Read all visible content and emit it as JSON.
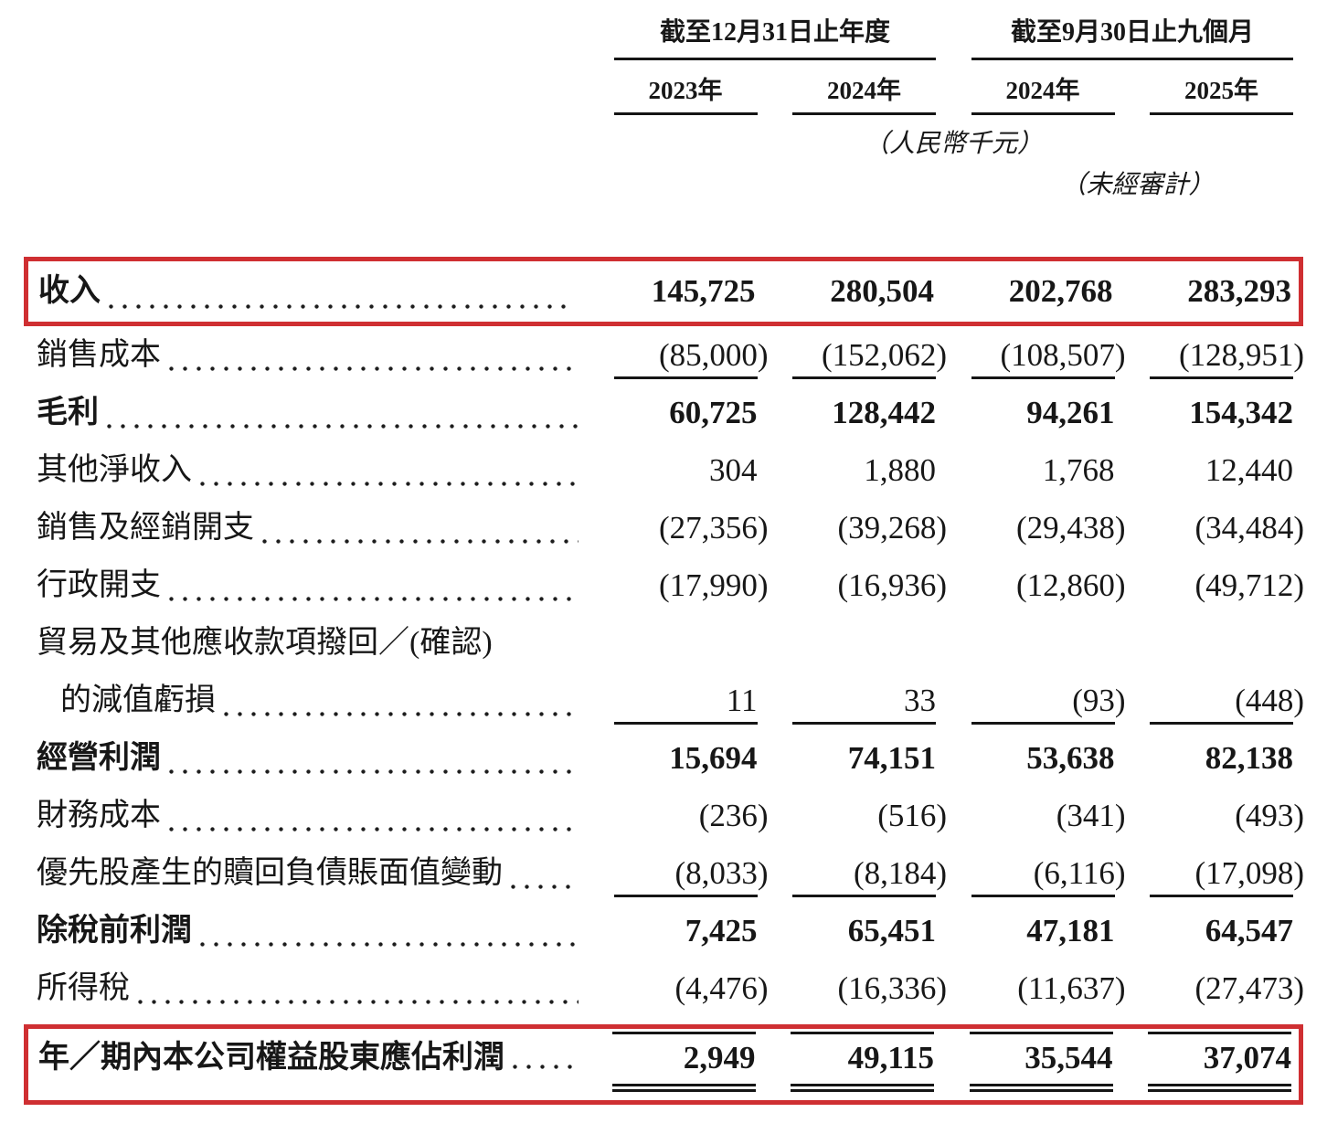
{
  "table": {
    "highlight_border_color": "#cf2f32",
    "rule_color": "#151515",
    "col_groups": [
      {
        "title": "截至12月31日止年度",
        "years": [
          "2023年",
          "2024年"
        ]
      },
      {
        "title": "截至9月30日止九個月",
        "years": [
          "2024年",
          "2025年"
        ]
      }
    ],
    "unit_note": "（人民幣千元）",
    "unaudited_note": "（未經審計）",
    "rows": [
      {
        "label": "收入",
        "values": [
          "145,725",
          "280,504",
          "202,768",
          "283,293"
        ],
        "bold": true,
        "red_box": true
      },
      {
        "label": "銷售成本",
        "values": [
          "(85,000)",
          "(152,062)",
          "(108,507)",
          "(128,951)"
        ],
        "rule_below": true
      },
      {
        "label": "毛利",
        "values": [
          "60,725",
          "128,442",
          "94,261",
          "154,342"
        ],
        "bold": true
      },
      {
        "label": "其他淨收入",
        "values": [
          "304",
          "1,880",
          "1,768",
          "12,440"
        ]
      },
      {
        "label": "銷售及經銷開支",
        "values": [
          "(27,356)",
          "(39,268)",
          "(29,438)",
          "(34,484)"
        ]
      },
      {
        "label": "行政開支",
        "values": [
          "(17,990)",
          "(16,936)",
          "(12,860)",
          "(49,712)"
        ]
      },
      {
        "label": "貿易及其他應收款項撥回／(確認)",
        "label2": "的減值虧損",
        "values": [
          "11",
          "33",
          "(93)",
          "(448)"
        ],
        "rule_below": true
      },
      {
        "label": "經營利潤",
        "values": [
          "15,694",
          "74,151",
          "53,638",
          "82,138"
        ],
        "bold": true
      },
      {
        "label": "財務成本",
        "values": [
          "(236)",
          "(516)",
          "(341)",
          "(493)"
        ]
      },
      {
        "label": "優先股產生的贖回負債賬面值變動",
        "values": [
          "(8,033)",
          "(8,184)",
          "(6,116)",
          "(17,098)"
        ],
        "rule_below": true
      },
      {
        "label": "除稅前利潤",
        "values": [
          "7,425",
          "65,451",
          "47,181",
          "64,547"
        ],
        "bold": true
      },
      {
        "label": "所得稅",
        "values": [
          "(4,476)",
          "(16,336)",
          "(11,637)",
          "(27,473)"
        ]
      },
      {
        "label": "年／期內本公司權益股東應佔利潤",
        "values": [
          "2,949",
          "49,115",
          "35,544",
          "37,074"
        ],
        "bold": true,
        "red_box": true,
        "rule_above": true,
        "double_rule_below": true
      }
    ]
  }
}
